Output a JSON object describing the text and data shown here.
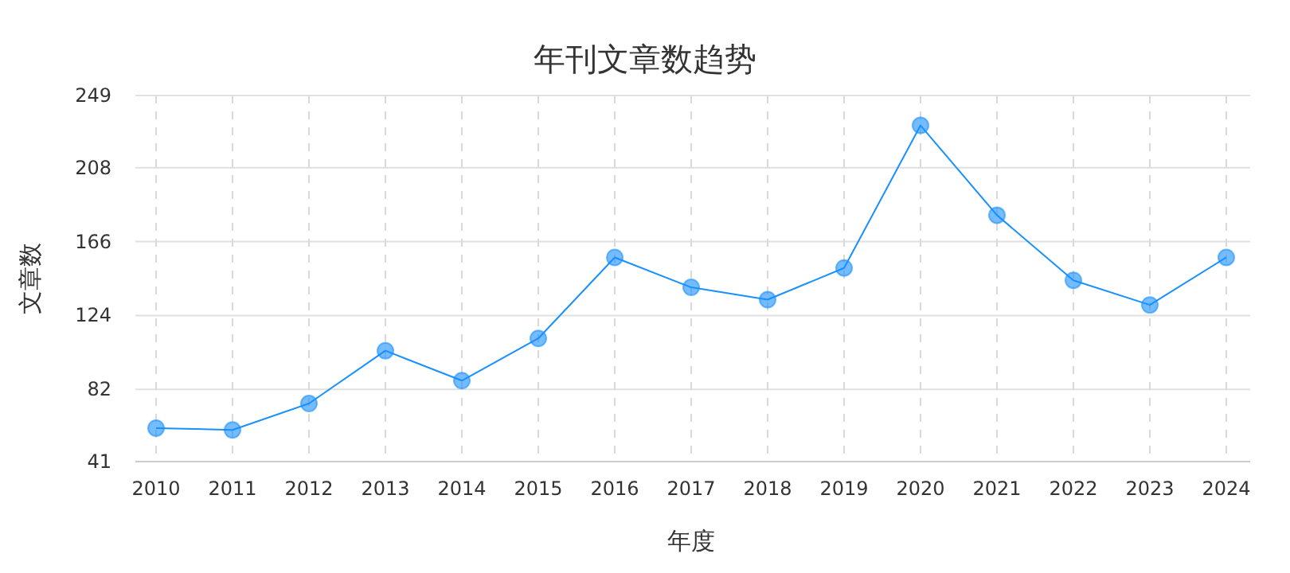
{
  "chart_data": {
    "type": "line",
    "title": "年刊文章数趋势",
    "xlabel": "年度",
    "ylabel": "文章数",
    "categories": [
      "2010",
      "2011",
      "2012",
      "2013",
      "2014",
      "2015",
      "2016",
      "2017",
      "2018",
      "2019",
      "2020",
      "2021",
      "2022",
      "2023",
      "2024"
    ],
    "series": [
      {
        "color": "#1890ff",
        "values": [
          60,
          59,
          74,
          104,
          87,
          111,
          157,
          140,
          133,
          151,
          232,
          181,
          144,
          130,
          157
        ]
      }
    ],
    "ylim": [
      41,
      249
    ],
    "yticks": [
      41,
      82,
      124,
      166,
      208,
      249
    ],
    "grid": true,
    "marker": "circle",
    "line_style": "solid"
  }
}
